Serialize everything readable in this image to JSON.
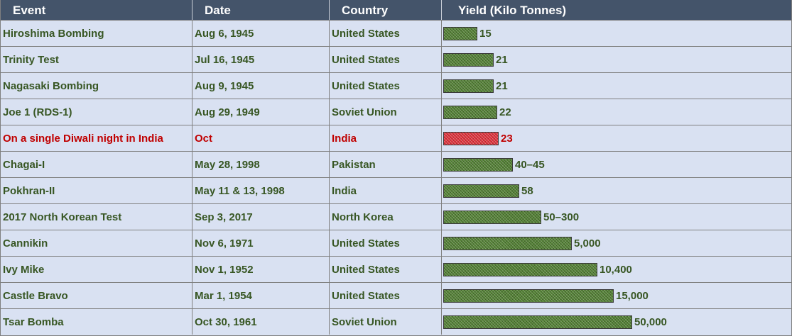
{
  "headers": {
    "event": "Event",
    "date": "Date",
    "country": "Country",
    "yield": "Yield (Kilo Tonnes)"
  },
  "colors": {
    "header_bg": "#44546a",
    "row_bg": "#d9e1f2",
    "text_green": "#375623",
    "highlight_red": "#c00000",
    "bar_green": "#548235",
    "bar_red": "#e0303a"
  },
  "chart_data": {
    "type": "table",
    "bar_fill_fraction": [
      0.0983,
      0.1444,
      0.1444,
      0.1553,
      0.1589,
      0.2008,
      0.218,
      0.2819,
      0.3692,
      0.4432,
      0.4906,
      0.5424
    ],
    "rows": [
      {
        "event": "Hiroshima Bombing",
        "date": "Aug 6, 1945",
        "country": "United States",
        "yield": "15",
        "highlight": false
      },
      {
        "event": "Trinity Test",
        "date": "Jul 16, 1945",
        "country": "United States",
        "yield": "21",
        "highlight": false
      },
      {
        "event": "Nagasaki Bombing",
        "date": "Aug 9, 1945",
        "country": "United States",
        "yield": "21",
        "highlight": false
      },
      {
        "event": "Joe 1 (RDS-1)",
        "date": "Aug 29, 1949",
        "country": "Soviet Union",
        "yield": "22",
        "highlight": false
      },
      {
        "event": "On a single Diwali night in India",
        "date": "Oct",
        "country": "India",
        "yield": "23",
        "highlight": true
      },
      {
        "event": "Chagai-I",
        "date": "May 28, 1998",
        "country": "Pakistan",
        "yield": "40–45",
        "highlight": false
      },
      {
        "event": "Pokhran-II",
        "date": "May 11 & 13, 1998",
        "country": "India",
        "yield": "58",
        "highlight": false
      },
      {
        "event": "2017 North Korean Test",
        "date": "Sep 3, 2017",
        "country": "North Korea",
        "yield": "50–300",
        "highlight": false
      },
      {
        "event": "Cannikin",
        "date": "Nov 6, 1971",
        "country": "United States",
        "yield": "5,000",
        "highlight": false
      },
      {
        "event": "Ivy Mike",
        "date": "Nov 1, 1952",
        "country": "United States",
        "yield": "10,400",
        "highlight": false
      },
      {
        "event": "Castle Bravo",
        "date": "Mar 1, 1954",
        "country": "United States",
        "yield": "15,000",
        "highlight": false
      },
      {
        "event": "Tsar Bomba",
        "date": "Oct 30, 1961",
        "country": "Soviet Union",
        "yield": "50,000",
        "highlight": false
      }
    ]
  }
}
